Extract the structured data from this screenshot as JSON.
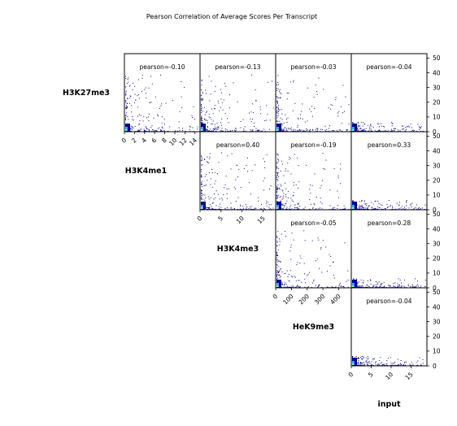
{
  "chart_data": {
    "type": "scatter",
    "title": "Pearson Correlation of Average Scores Per Transcript",
    "variables": [
      "H3K27me3",
      "H3K4me1",
      "H3K4me3",
      "HeK9me3",
      "input"
    ],
    "x_ticks": {
      "H3K27me3": [
        "0",
        "2",
        "4",
        "6",
        "8",
        "10",
        "12",
        "14"
      ],
      "H3K4me1": [
        "0",
        "5",
        "10",
        "15"
      ],
      "H3K4me3": [
        "0",
        "100",
        "200",
        "300",
        "400"
      ],
      "HeK9me3": [
        "0",
        "5",
        "10",
        "15"
      ]
    },
    "x_ranges": {
      "H3K27me3": [
        0,
        15
      ],
      "H3K4me1": [
        0,
        18
      ],
      "H3K4me3": [
        0,
        480
      ],
      "HeK9me3": [
        0,
        19
      ]
    },
    "y_ticks": [
      "0",
      "10",
      "20",
      "30",
      "40",
      "50"
    ],
    "y_range": [
      0,
      53
    ],
    "panels": [
      {
        "row": 0,
        "col": 1,
        "x": "H3K27me3",
        "y": "H3K4me1",
        "label": "pearson=-0.10"
      },
      {
        "row": 0,
        "col": 2,
        "x": "H3K27me3",
        "y": "H3K4me3",
        "label": "pearson=-0.13"
      },
      {
        "row": 0,
        "col": 3,
        "x": "H3K27me3",
        "y": "HeK9me3",
        "label": "pearson=-0.03"
      },
      {
        "row": 0,
        "col": 4,
        "x": "H3K27me3",
        "y": "input",
        "label": "pearson=-0.04"
      },
      {
        "row": 1,
        "col": 2,
        "x": "H3K4me1",
        "y": "H3K4me3",
        "label": "pearson=0.40"
      },
      {
        "row": 1,
        "col": 3,
        "x": "H3K4me1",
        "y": "HeK9me3",
        "label": "pearson=-0.19"
      },
      {
        "row": 1,
        "col": 4,
        "x": "H3K4me1",
        "y": "input",
        "label": "pearson=0.33"
      },
      {
        "row": 2,
        "col": 3,
        "x": "H3K4me3",
        "y": "HeK9me3",
        "label": "pearson=-0.05"
      },
      {
        "row": 2,
        "col": 4,
        "x": "H3K4me3",
        "y": "input",
        "label": "pearson=0.28"
      },
      {
        "row": 3,
        "col": 4,
        "x": "HeK9me3",
        "y": "input",
        "label": "pearson=-0.04"
      }
    ],
    "colors": {
      "points": "#00008b",
      "dense_core": "#3fa0ff",
      "peak": "#7fffa0"
    }
  }
}
